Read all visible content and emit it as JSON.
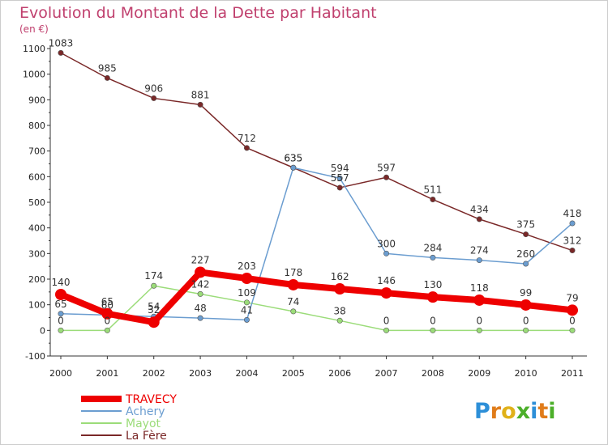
{
  "chart_data": {
    "type": "line",
    "title": "Evolution du Montant de la Dette par Habitant",
    "subtitle": "(en €)",
    "xlabel": "",
    "ylabel": "",
    "x": [
      "2000",
      "2001",
      "2002",
      "2003",
      "2004",
      "2005",
      "2006",
      "2007",
      "2008",
      "2009",
      "2010",
      "2011"
    ],
    "ylim": [
      -100,
      1100
    ],
    "y_ticks": [
      -100,
      0,
      100,
      200,
      300,
      400,
      500,
      600,
      700,
      800,
      900,
      1000,
      1100
    ],
    "grid": false,
    "legend_position": "bottom-left",
    "series": [
      {
        "name": "TRAVECY",
        "color": "#ee0000",
        "emphasis": true,
        "values": [
          140,
          65,
          32,
          227,
          203,
          178,
          162,
          146,
          130,
          118,
          99,
          79
        ]
      },
      {
        "name": "Achery",
        "color": "#6b9dd0",
        "values": [
          65,
          60,
          54,
          48,
          41,
          635,
          594,
          300,
          284,
          274,
          260,
          418
        ]
      },
      {
        "name": "Mayot",
        "color": "#9bdc79",
        "values": [
          0,
          0,
          174,
          142,
          109,
          74,
          38,
          0,
          0,
          0,
          0,
          0
        ]
      },
      {
        "name": "La Fère",
        "color": "#7a2828",
        "values": [
          1083,
          985,
          906,
          881,
          712,
          635,
          557,
          597,
          511,
          434,
          375,
          312
        ]
      }
    ]
  },
  "logo": {
    "letters": [
      "P",
      "r",
      "o",
      "x",
      "i",
      "t",
      "i"
    ],
    "colors": [
      "#2d8fd8",
      "#e07c1a",
      "#e0b11a",
      "#4caf2a",
      "#2d8fd8",
      "#e07c1a",
      "#4caf2a"
    ]
  }
}
